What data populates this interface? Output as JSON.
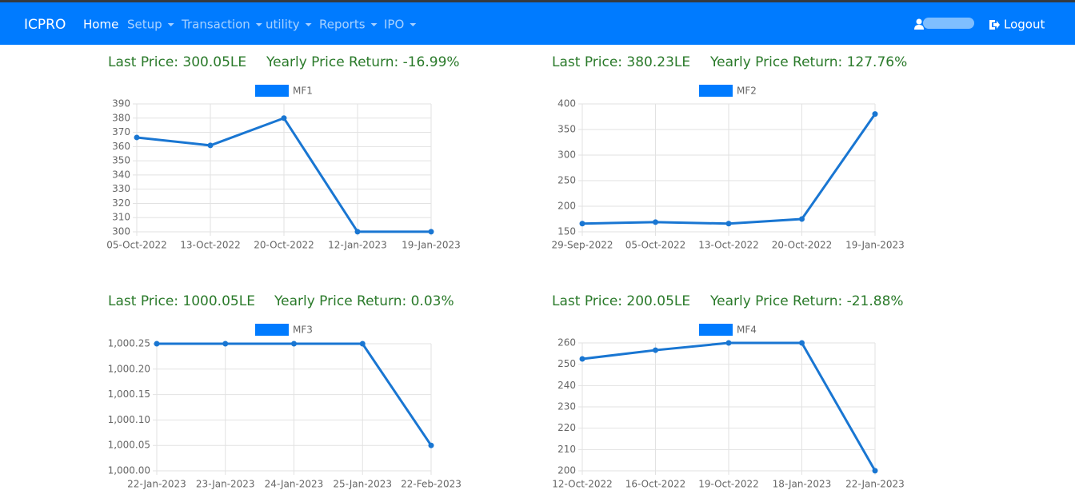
{
  "navbar": {
    "brand": "ICPRO",
    "items": [
      "Home",
      "Setup",
      "Transaction",
      "utility",
      "Reports",
      "IPO"
    ],
    "logout": "Logout"
  },
  "panels": [
    {
      "last_price": "Last Price: 300.05LE",
      "yearly_return": "Yearly Price Return: -16.99%"
    },
    {
      "last_price": "Last Price: 380.23LE",
      "yearly_return": "Yearly Price Return: 127.76%"
    },
    {
      "last_price": "Last Price: 1000.05LE",
      "yearly_return": "Yearly Price Return: 0.03%"
    },
    {
      "last_price": "Last Price: 200.05LE",
      "yearly_return": "Yearly Price Return: -21.88%"
    }
  ],
  "chart_data": [
    {
      "type": "line",
      "categories": [
        "05-Oct-2022",
        "13-Oct-2022",
        "20-Oct-2022",
        "12-Jan-2023",
        "19-Jan-2023"
      ],
      "series": [
        {
          "name": "MF1",
          "color": "#1976d2",
          "values": [
            366.4,
            360.8,
            380,
            300.05,
            300.05
          ]
        }
      ],
      "ylim": [
        300,
        390
      ],
      "yticks": [
        300,
        310,
        320,
        330,
        340,
        350,
        360,
        370,
        380,
        390
      ],
      "grid": true,
      "legend": "top"
    },
    {
      "type": "line",
      "categories": [
        "29-Sep-2022",
        "05-Oct-2022",
        "13-Oct-2022",
        "20-Oct-2022",
        "19-Jan-2023"
      ],
      "series": [
        {
          "name": "MF2",
          "color": "#1976d2",
          "values": [
            166,
            169,
            166,
            175,
            380.23
          ]
        }
      ],
      "ylim": [
        150,
        400
      ],
      "yticks": [
        150,
        200,
        250,
        300,
        350,
        400
      ],
      "grid": true,
      "legend": "top"
    },
    {
      "type": "line",
      "categories": [
        "22-Jan-2023",
        "23-Jan-2023",
        "24-Jan-2023",
        "25-Jan-2023",
        "22-Feb-2023"
      ],
      "series": [
        {
          "name": "MF3",
          "color": "#1976d2",
          "values": [
            1000.25,
            1000.25,
            1000.25,
            1000.25,
            1000.05
          ]
        }
      ],
      "ylim": [
        1000,
        1000.25
      ],
      "yticks": [
        {
          "value": 1000,
          "label": "1,000.00"
        },
        {
          "value": 1000.05,
          "label": "1,000.05"
        },
        {
          "value": 1000.1,
          "label": "1,000.10"
        },
        {
          "value": 1000.15,
          "label": "1,000.15"
        },
        {
          "value": 1000.2,
          "label": "1,000.20"
        },
        {
          "value": 1000.25,
          "label": "1,000.25"
        }
      ],
      "grid": true,
      "legend": "top"
    },
    {
      "type": "line",
      "categories": [
        "12-Oct-2022",
        "16-Oct-2022",
        "19-Oct-2022",
        "18-Jan-2023",
        "22-Jan-2023"
      ],
      "series": [
        {
          "name": "MF4",
          "color": "#1976d2",
          "values": [
            252.5,
            256.6,
            260,
            260,
            200.05
          ]
        }
      ],
      "ylim": [
        200,
        260
      ],
      "yticks": [
        200,
        210,
        220,
        230,
        240,
        250,
        260
      ],
      "grid": true,
      "legend": "top"
    }
  ]
}
